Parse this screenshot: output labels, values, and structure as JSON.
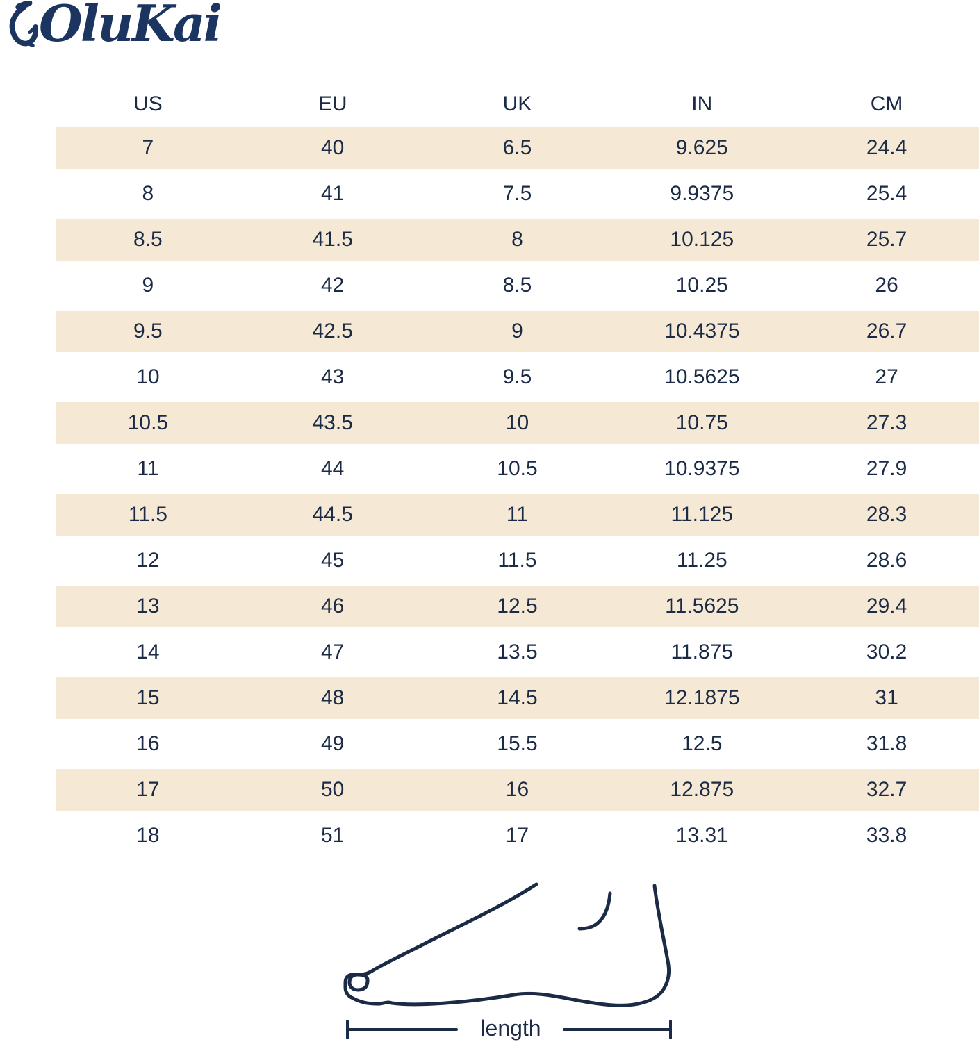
{
  "brand": {
    "logo_text": "OluKai",
    "logo_icon": "fishhook-icon",
    "logo_color": "#1c3560"
  },
  "colors": {
    "text_navy": "#1b2a45",
    "stripe_beige": "#f5e9d5",
    "background": "#ffffff"
  },
  "size_chart": {
    "columns": [
      "US",
      "EU",
      "UK",
      "IN",
      "CM"
    ],
    "rows": [
      [
        "7",
        "40",
        "6.5",
        "9.625",
        "24.4"
      ],
      [
        "8",
        "41",
        "7.5",
        "9.9375",
        "25.4"
      ],
      [
        "8.5",
        "41.5",
        "8",
        "10.125",
        "25.7"
      ],
      [
        "9",
        "42",
        "8.5",
        "10.25",
        "26"
      ],
      [
        "9.5",
        "42.5",
        "9",
        "10.4375",
        "26.7"
      ],
      [
        "10",
        "43",
        "9.5",
        "10.5625",
        "27"
      ],
      [
        "10.5",
        "43.5",
        "10",
        "10.75",
        "27.3"
      ],
      [
        "11",
        "44",
        "10.5",
        "10.9375",
        "27.9"
      ],
      [
        "11.5",
        "44.5",
        "11",
        "11.125",
        "28.3"
      ],
      [
        "12",
        "45",
        "11.5",
        "11.25",
        "28.6"
      ],
      [
        "13",
        "46",
        "12.5",
        "11.5625",
        "29.4"
      ],
      [
        "14",
        "47",
        "13.5",
        "11.875",
        "30.2"
      ],
      [
        "15",
        "48",
        "14.5",
        "12.1875",
        "31"
      ],
      [
        "16",
        "49",
        "15.5",
        "12.5",
        "31.8"
      ],
      [
        "17",
        "50",
        "16",
        "12.875",
        "32.7"
      ],
      [
        "18",
        "51",
        "17",
        "13.31",
        "33.8"
      ]
    ]
  },
  "diagram": {
    "label": "length",
    "description": "foot-outline-side-profile"
  },
  "chart_data": {
    "type": "table",
    "title": "OluKai men's shoe size conversion chart",
    "columns": [
      "US",
      "EU",
      "UK",
      "IN",
      "CM"
    ],
    "rows": [
      [
        7,
        40,
        6.5,
        9.625,
        24.4
      ],
      [
        8,
        41,
        7.5,
        9.9375,
        25.4
      ],
      [
        8.5,
        41.5,
        8,
        10.125,
        25.7
      ],
      [
        9,
        42,
        8.5,
        10.25,
        26
      ],
      [
        9.5,
        42.5,
        9,
        10.4375,
        26.7
      ],
      [
        10,
        43,
        9.5,
        10.5625,
        27
      ],
      [
        10.5,
        43.5,
        10,
        10.75,
        27.3
      ],
      [
        11,
        44,
        10.5,
        10.9375,
        27.9
      ],
      [
        11.5,
        44.5,
        11,
        11.125,
        28.3
      ],
      [
        12,
        45,
        11.5,
        11.25,
        28.6
      ],
      [
        13,
        46,
        12.5,
        11.5625,
        29.4
      ],
      [
        14,
        47,
        13.5,
        11.875,
        30.2
      ],
      [
        15,
        48,
        14.5,
        12.1875,
        31
      ],
      [
        16,
        49,
        15.5,
        12.5,
        31.8
      ],
      [
        17,
        50,
        16,
        12.875,
        32.7
      ],
      [
        18,
        51,
        17,
        13.31,
        33.8
      ]
    ],
    "layout": "alternating beige/white row stripes starting beige; columns equal width"
  }
}
